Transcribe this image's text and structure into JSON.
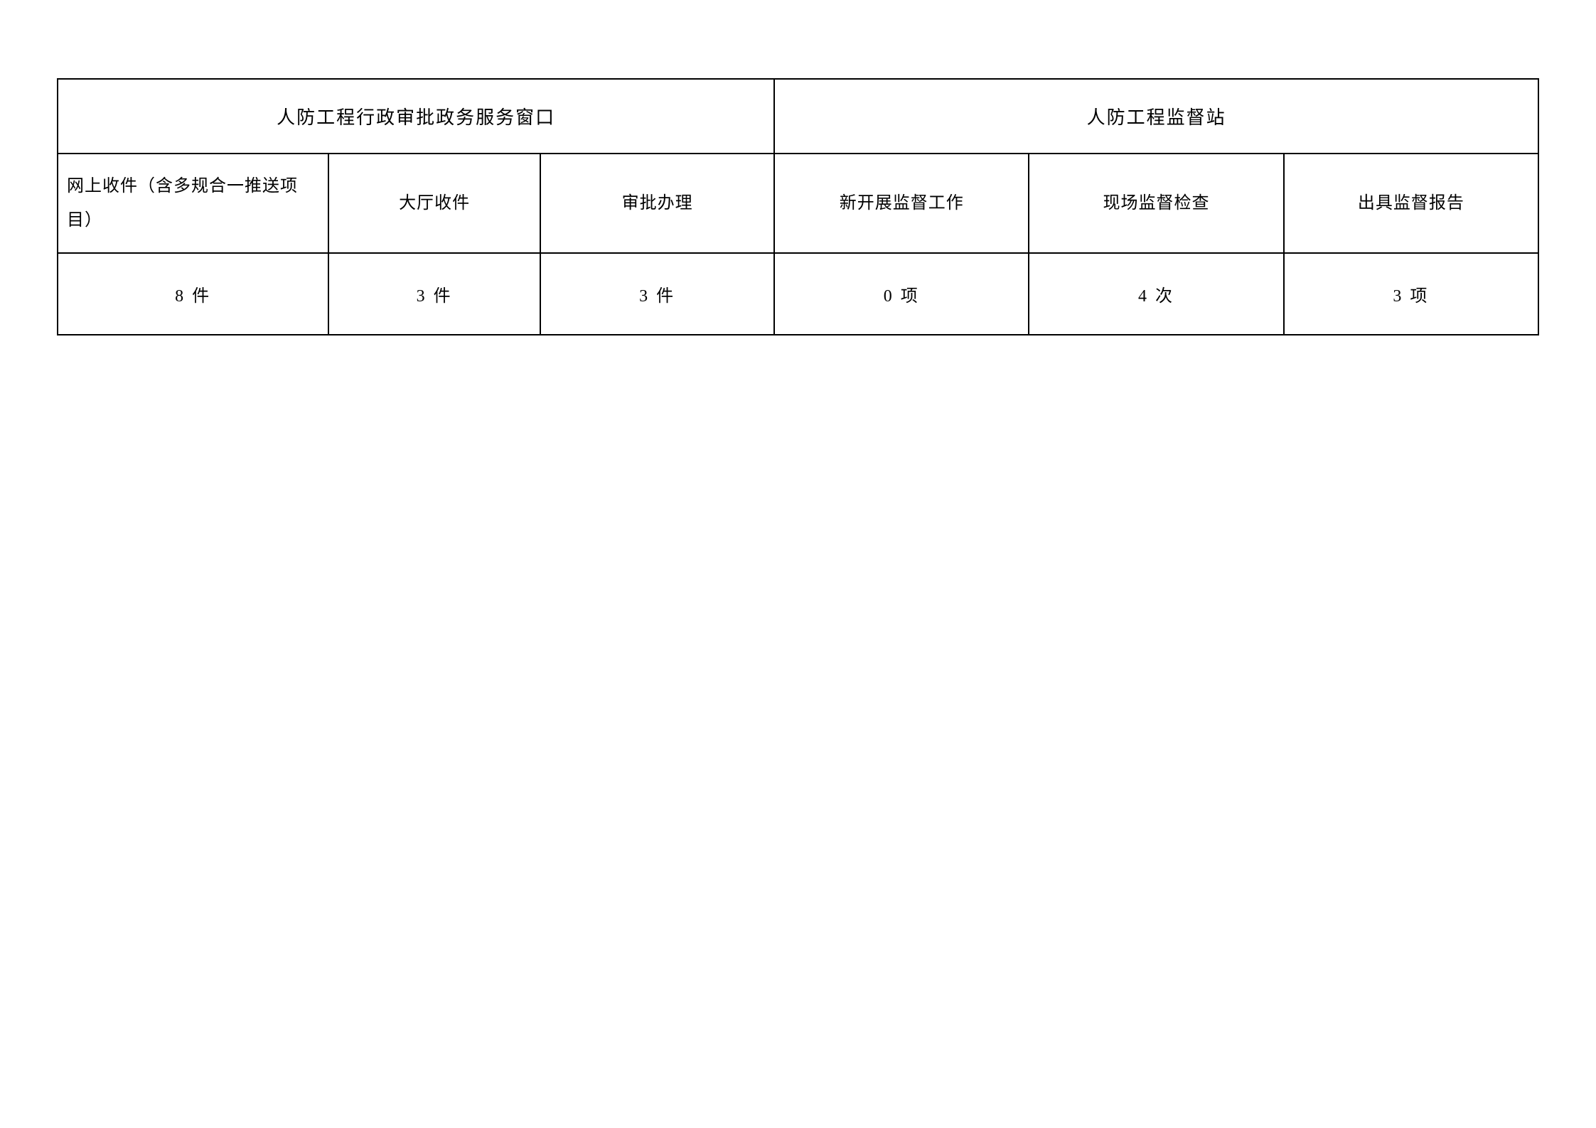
{
  "table": {
    "type": "table",
    "border_color": "#000000",
    "border_width": 2,
    "background_color": "#ffffff",
    "text_color": "#000000",
    "font_family": "SimSun",
    "header_fontsize": 26,
    "subheader_fontsize": 24,
    "data_fontsize": 24,
    "header_row_height": 105,
    "subheader_row_height": 140,
    "data_row_height": 115,
    "column_widths_percent": [
      18.3,
      14.3,
      15.8,
      17.2,
      17.2,
      17.2
    ],
    "headers": [
      {
        "label": "人防工程行政审批政务服务窗口",
        "colspan": 3
      },
      {
        "label": "人防工程监督站",
        "colspan": 3
      }
    ],
    "subheaders": [
      "网上收件（含多规合一推送项目）",
      "大厅收件",
      "审批办理",
      "新开展监督工作",
      "现场监督检查",
      "出具监督报告"
    ],
    "data_row": [
      "8 件",
      "3 件",
      "3 件",
      "0 项",
      "4 次",
      "3 项"
    ]
  }
}
